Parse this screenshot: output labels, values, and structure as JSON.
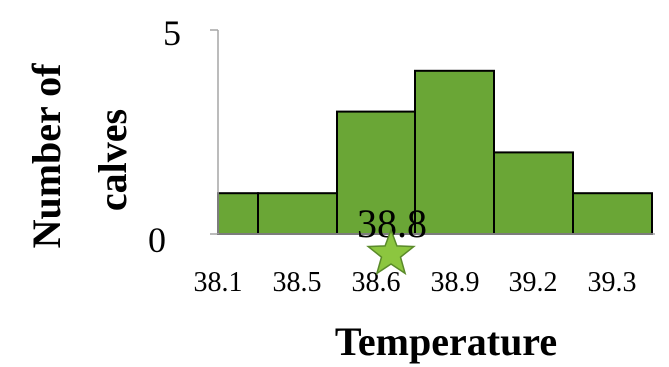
{
  "chart_data": {
    "type": "bar",
    "categories": [
      "38.1",
      "38.5",
      "38.6",
      "38.9",
      "39.2",
      "39.3"
    ],
    "values": [
      1,
      1,
      3,
      4,
      2,
      1
    ],
    "xlabel": "Temperature",
    "ylabel": "Number of calves",
    "ylabel_lines": [
      "Number of",
      "calves"
    ],
    "ylim": [
      0,
      5
    ],
    "yticks": [
      "0",
      "5"
    ],
    "grid": false,
    "legend": "none",
    "annotation": {
      "text": "38.8",
      "marker": "star-icon",
      "x_value": 38.8
    },
    "colors": {
      "bar_fill": "#6aa636",
      "bar_stroke": "#000000",
      "star_fill": "#8cc63f",
      "star_stroke": "#5a8a2a",
      "axis": "#a6a6a6"
    }
  }
}
